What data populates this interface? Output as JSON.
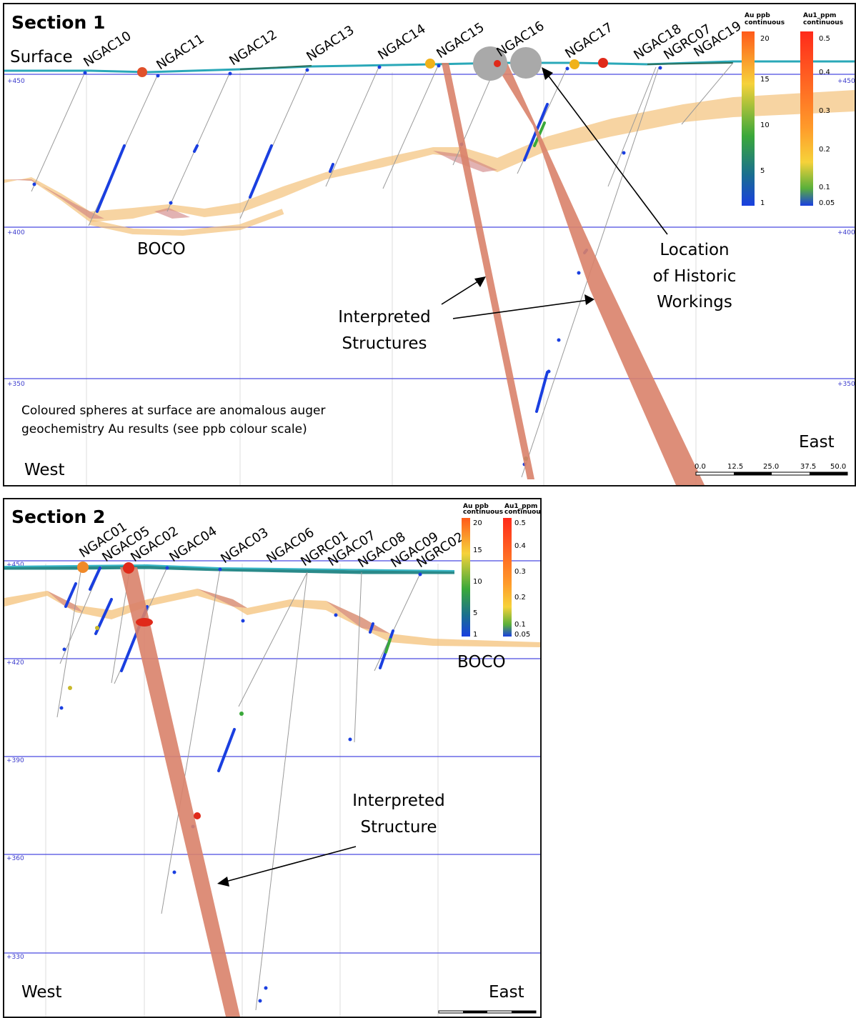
{
  "section1": {
    "title": "Section 1",
    "surface_label": "Surface",
    "boco_label": "BOCO",
    "west_label": "West",
    "east_label": "East",
    "workings_label": [
      "Location",
      "of Historic",
      "Workings"
    ],
    "structures_label": [
      "Interpreted",
      "Structures"
    ],
    "note": [
      "Coloured spheres at surface are anomalous auger",
      "geochemistry Au results (see ppb colour scale)"
    ],
    "rl_labels": [
      "+450",
      "+400",
      "+350"
    ],
    "holes": [
      "NGAC10",
      "NGAC11",
      "NGAC12",
      "NGAC13",
      "NGAC14",
      "NGAC15",
      "NGAC16",
      "NGAC17",
      "NGAC18",
      "NGRC07",
      "NGAC19"
    ],
    "scale_ticks": [
      "0.0",
      "12.5",
      "25.0",
      "37.5",
      "50.0"
    ],
    "legend_au": {
      "title": [
        "Au ppb",
        "continuous"
      ],
      "ticks": [
        "20",
        "15",
        "10",
        "5",
        "1"
      ]
    },
    "legend_au1": {
      "title": [
        "Au1_ppm",
        "continuous"
      ],
      "ticks": [
        "0.5",
        "0.4",
        "0.3",
        "0.2",
        "0.1",
        "0.05"
      ]
    }
  },
  "section2": {
    "title": "Section 2",
    "boco_label": "BOCO",
    "west_label": "West",
    "east_label": "East",
    "structure_label": [
      "Interpreted",
      "Structure"
    ],
    "rl_labels": [
      "+450",
      "+420",
      "+390",
      "+360",
      "+330"
    ],
    "holes": [
      "NGAC01",
      "NGAC05",
      "NGAC02",
      "NGAC04",
      "NGAC03",
      "NGAC06",
      "NGRC01",
      "NGAC07",
      "NGAC08",
      "NGAC09",
      "NGRC02"
    ],
    "legend_au": {
      "title": [
        "Au ppb",
        "continuous"
      ],
      "ticks": [
        "20",
        "15",
        "10",
        "5",
        "1"
      ]
    },
    "legend_au1": {
      "title": [
        "Au1_ppm",
        "continuous"
      ],
      "ticks": [
        "0.5",
        "0.4",
        "0.3",
        "0.2",
        "0.1",
        "0.05"
      ]
    }
  },
  "colors": {
    "structure": "#d9826a",
    "boco": "#f4c27a",
    "grid": "#4a4ae0",
    "assay": "#1a3fe0",
    "historic": "#a9a9a9"
  }
}
